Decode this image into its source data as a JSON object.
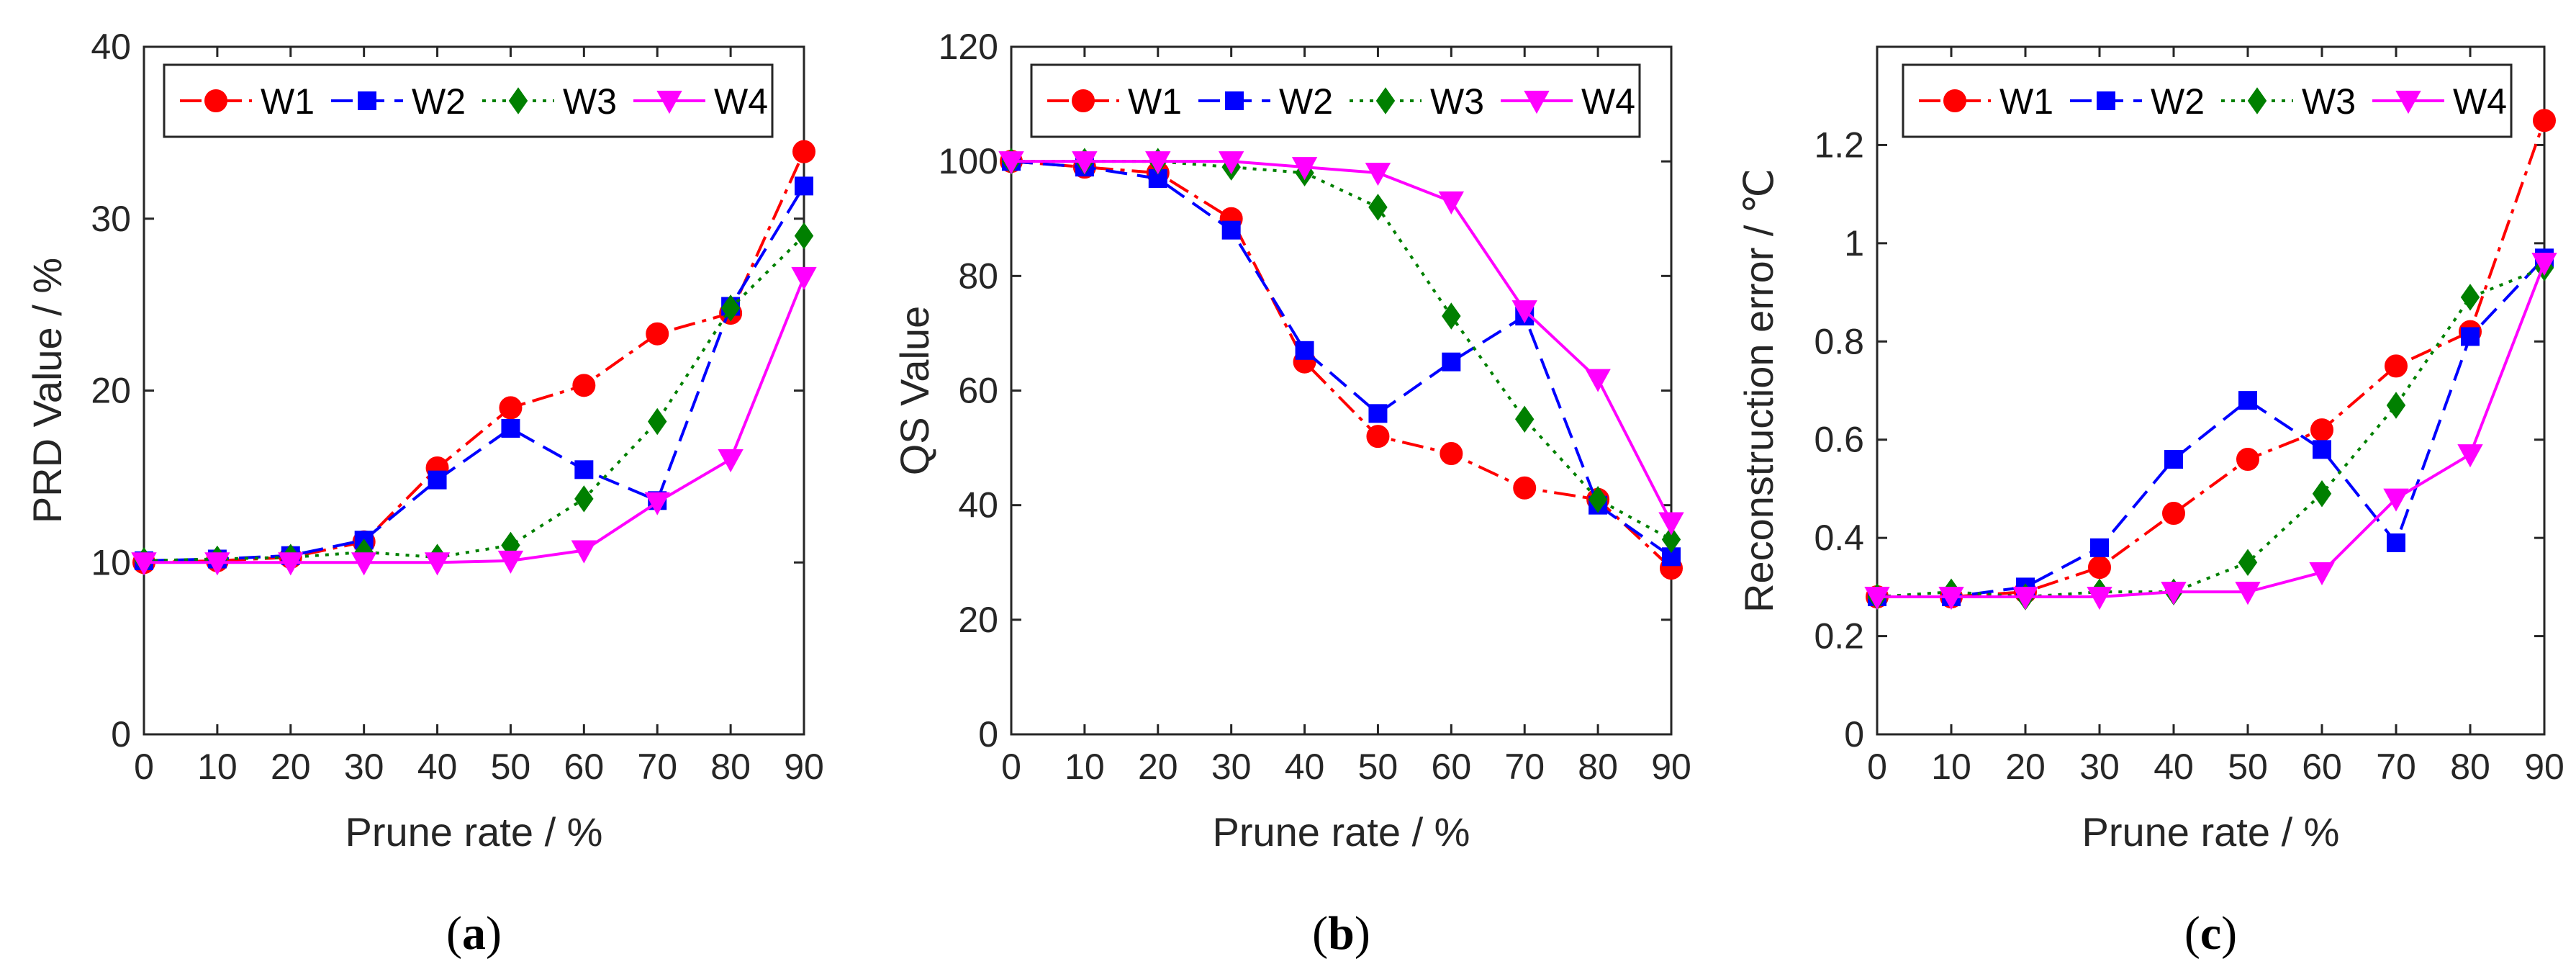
{
  "colors": {
    "W1": "#ff0000",
    "W2": "#0000ff",
    "W3": "#008000",
    "W4": "#ff00ff",
    "axis": "#262626"
  },
  "chart_data": [
    {
      "type": "line",
      "caption": "(a)",
      "caption_paren_open": "(",
      "caption_letter": "a",
      "caption_paren_close": ")",
      "xlabel": "Prune rate / %",
      "ylabel": "PRD Value / %",
      "xlim": [
        0,
        90
      ],
      "ylim": [
        0,
        40
      ],
      "xticks": [
        "0",
        "10",
        "20",
        "30",
        "40",
        "50",
        "60",
        "70",
        "80",
        "90"
      ],
      "yticks": [
        "0",
        "10",
        "20",
        "30",
        "40"
      ],
      "ytick_values": [
        0,
        10,
        20,
        30,
        40
      ],
      "x": [
        0,
        10,
        20,
        30,
        40,
        50,
        60,
        70,
        80,
        90
      ],
      "legend_position": "top",
      "series": [
        {
          "name": "W1",
          "values": [
            10.0,
            10.1,
            10.3,
            11.2,
            15.5,
            19.0,
            20.3,
            23.3,
            24.5,
            33.9
          ]
        },
        {
          "name": "W2",
          "values": [
            10.1,
            10.2,
            10.4,
            11.3,
            14.8,
            17.8,
            15.4,
            13.6,
            24.9,
            31.9
          ]
        },
        {
          "name": "W3",
          "values": [
            10.1,
            10.2,
            10.3,
            10.6,
            10.3,
            11.0,
            13.7,
            18.2,
            24.8,
            29.0
          ]
        },
        {
          "name": "W4",
          "values": [
            10.0,
            10.0,
            10.0,
            10.0,
            10.0,
            10.1,
            10.7,
            13.5,
            16.0,
            26.6
          ]
        }
      ]
    },
    {
      "type": "line",
      "caption": "(b)",
      "caption_paren_open": "(",
      "caption_letter": "b",
      "caption_paren_close": ")",
      "xlabel": "Prune rate / %",
      "ylabel": "QS Value",
      "xlim": [
        0,
        90
      ],
      "ylim": [
        0,
        120
      ],
      "xticks": [
        "0",
        "10",
        "20",
        "30",
        "40",
        "50",
        "60",
        "70",
        "80",
        "90"
      ],
      "yticks": [
        "0",
        "20",
        "40",
        "60",
        "80",
        "100",
        "120"
      ],
      "ytick_values": [
        0,
        20,
        40,
        60,
        80,
        100,
        120
      ],
      "x": [
        0,
        10,
        20,
        30,
        40,
        50,
        60,
        70,
        80,
        90
      ],
      "legend_position": "top",
      "series": [
        {
          "name": "W1",
          "values": [
            100,
            99,
            98,
            90,
            65,
            52,
            49,
            43,
            41,
            29
          ]
        },
        {
          "name": "W2",
          "values": [
            100,
            99,
            97,
            88,
            67,
            56,
            65,
            73,
            40,
            31
          ]
        },
        {
          "name": "W3",
          "values": [
            100,
            100,
            100,
            99,
            98,
            92,
            73,
            55,
            41,
            34
          ]
        },
        {
          "name": "W4",
          "values": [
            100,
            100,
            100,
            100,
            99,
            98,
            93,
            74,
            62,
            37
          ]
        }
      ]
    },
    {
      "type": "line",
      "caption": "(c)",
      "caption_paren_open": "(",
      "caption_letter": "c",
      "caption_paren_close": ")",
      "xlabel": "Prune rate / %",
      "ylabel": "Reconstruction error / ℃",
      "xlim": [
        0,
        90
      ],
      "ylim": [
        0,
        1.4
      ],
      "xticks": [
        "0",
        "10",
        "20",
        "30",
        "40",
        "50",
        "60",
        "70",
        "80",
        "90"
      ],
      "yticks": [
        "0",
        "0.2",
        "0.4",
        "0.6",
        "0.8",
        "1",
        "1.2"
      ],
      "ytick_values": [
        0,
        0.2,
        0.4,
        0.6,
        0.8,
        1.0,
        1.2
      ],
      "x": [
        0,
        10,
        20,
        30,
        40,
        50,
        60,
        70,
        80,
        90
      ],
      "legend_position": "top",
      "series": [
        {
          "name": "W1",
          "values": [
            0.28,
            0.28,
            0.29,
            0.34,
            0.45,
            0.56,
            0.62,
            0.75,
            0.82,
            1.25
          ]
        },
        {
          "name": "W2",
          "values": [
            0.28,
            0.28,
            0.3,
            0.38,
            0.56,
            0.68,
            0.58,
            0.39,
            0.81,
            0.97
          ]
        },
        {
          "name": "W3",
          "values": [
            0.28,
            0.29,
            0.28,
            0.29,
            0.29,
            0.35,
            0.49,
            0.67,
            0.89,
            0.95
          ]
        },
        {
          "name": "W4",
          "values": [
            0.28,
            0.28,
            0.28,
            0.28,
            0.29,
            0.29,
            0.33,
            0.48,
            0.57,
            0.96
          ]
        }
      ]
    }
  ]
}
